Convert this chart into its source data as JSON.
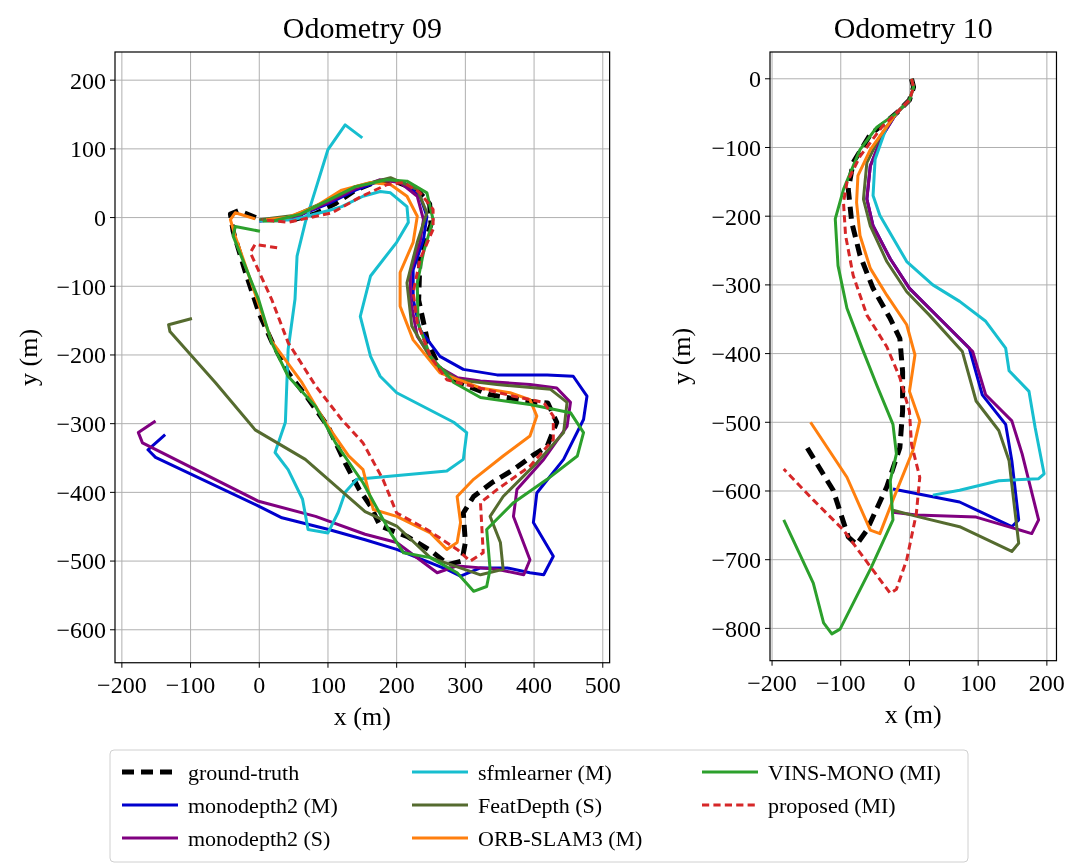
{
  "chart_data": [
    {
      "type": "line",
      "title": "Odometry 09",
      "xlabel": "x (m)",
      "ylabel": "y (m)",
      "xlim": [
        -210,
        510
      ],
      "ylim": [
        -648,
        241
      ],
      "xticks": [
        -200,
        -100,
        0,
        100,
        200,
        300,
        400,
        500
      ],
      "yticks": [
        -600,
        -500,
        -400,
        -300,
        -200,
        -100,
        0,
        100,
        200
      ],
      "grid": true,
      "legend": "bottom",
      "series": [
        {
          "name": "ground-truth",
          "color": "#000000",
          "line_style": "dashed",
          "x": [
            -5,
            -30,
            -42,
            -38,
            -20,
            0,
            19,
            42,
            70,
            100,
            125,
            145,
            162,
            176,
            215,
            250,
            275,
            295,
            300,
            297,
            312,
            340,
            370,
            400,
            419,
            433,
            420,
            404,
            336,
            290,
            263,
            245,
            232,
            234,
            250,
            248,
            230,
            200,
            170,
            140,
            110,
            80,
            50,
            20
          ],
          "values": [
            0,
            10,
            5,
            -20,
            -80,
            -140,
            -182,
            -226,
            -262,
            -304,
            -357,
            -395,
            -420,
            -449,
            -464,
            -485,
            -505,
            -500,
            -473,
            -430,
            -406,
            -385,
            -367,
            -345,
            -333,
            -298,
            -270,
            -269,
            -258,
            -240,
            -221,
            -180,
            -120,
            -56,
            -10,
            20,
            40,
            52,
            52,
            40,
            20,
            5,
            -3,
            -3
          ]
        },
        {
          "name": "monodepth2 (M)",
          "color": "#0000cd",
          "line_style": "solid",
          "x": [
            -137,
            -162,
            -151,
            -1,
            33,
            101,
            154,
            200,
            273,
            293,
            322,
            361,
            394,
            414,
            428,
            399,
            404,
            443,
            472,
            477,
            457,
            419,
            346,
            297,
            263,
            234,
            224,
            224,
            239,
            244,
            234,
            210,
            180,
            140,
            100,
            50,
            0
          ],
          "values": [
            -316,
            -338,
            -349,
            -420,
            -437,
            -454,
            -469,
            -483,
            -512,
            -522,
            -510,
            -510,
            -517,
            -520,
            -493,
            -444,
            -401,
            -352,
            -294,
            -260,
            -231,
            -229,
            -229,
            -221,
            -202,
            -163,
            -119,
            -76,
            -32,
            2,
            31,
            51,
            55,
            40,
            20,
            0,
            -5
          ]
        },
        {
          "name": "monodepth2 (S)",
          "color": "#800080",
          "line_style": "solid",
          "x": [
            -151,
            -176,
            -170,
            -1,
            82,
            154,
            200,
            259,
            288,
            346,
            385,
            394,
            370,
            375,
            414,
            448,
            453,
            433,
            394,
            322,
            288,
            259,
            230,
            220,
            220,
            234,
            239,
            230,
            205,
            175,
            140,
            100,
            50,
            0
          ],
          "values": [
            -296,
            -313,
            -328,
            -413,
            -435,
            -461,
            -473,
            -517,
            -507,
            -512,
            -520,
            -498,
            -435,
            -396,
            -352,
            -304,
            -269,
            -248,
            -243,
            -238,
            -233,
            -216,
            -173,
            -119,
            -80,
            -36,
            -3,
            31,
            51,
            55,
            42,
            22,
            0,
            -5
          ]
        },
        {
          "name": "sfmlearner (M)",
          "color": "#17becf",
          "line_style": "solid",
          "x": [
            150,
            125,
            100,
            82,
            67,
            55,
            52,
            42,
            38,
            23,
            42,
            63,
            71,
            100,
            115,
            125,
            142,
            273,
            297,
            302,
            283,
            200,
            176,
            162,
            147,
            162,
            200,
            217,
            215,
            191,
            176,
            151,
            120,
            100,
            50,
            0
          ],
          "values": [
            116,
            135,
            99,
            41,
            -7,
            -56,
            -119,
            -192,
            -298,
            -342,
            -367,
            -410,
            -454,
            -459,
            -429,
            -400,
            -381,
            -369,
            -352,
            -313,
            -298,
            -255,
            -231,
            -202,
            -144,
            -85,
            -36,
            -7,
            16,
            36,
            38,
            31,
            16,
            10,
            -3,
            -5
          ]
        },
        {
          "name": "FeatDepth (S)",
          "color": "#556b2f",
          "line_style": "solid",
          "x": [
            -98,
            -132,
            -130,
            -64,
            -6,
            67,
            154,
            200,
            249,
            322,
            355,
            351,
            336,
            355,
            404,
            443,
            448,
            424,
            346,
            288,
            253,
            222,
            215,
            230,
            244,
            230,
            191,
            140,
            100,
            50,
            0
          ],
          "values": [
            -147,
            -156,
            -166,
            -240,
            -309,
            -352,
            -428,
            -449,
            -495,
            -520,
            -512,
            -473,
            -435,
            -406,
            -357,
            -313,
            -269,
            -250,
            -243,
            -236,
            -211,
            -158,
            -95,
            -36,
            7,
            41,
            58,
            45,
            25,
            3,
            -3
          ]
        },
        {
          "name": "ORB-SLAM3 (M)",
          "color": "#ff7f0e",
          "line_style": "solid",
          "x": [
            -6,
            -35,
            -42,
            -35,
            18,
            62,
            96,
            130,
            151,
            166,
            200,
            249,
            273,
            288,
            293,
            288,
            312,
            355,
            394,
            404,
            394,
            365,
            322,
            263,
            224,
            205,
            205,
            224,
            230,
            215,
            191,
            162,
            120,
            80,
            40,
            10
          ],
          "values": [
            -2,
            7,
            -3,
            -27,
            -180,
            -240,
            -298,
            -347,
            -367,
            -425,
            -435,
            -459,
            -483,
            -473,
            -444,
            -406,
            -381,
            -347,
            -318,
            -289,
            -265,
            -255,
            -248,
            -226,
            -178,
            -129,
            -80,
            -36,
            2,
            31,
            48,
            51,
            40,
            15,
            0,
            -3
          ]
        },
        {
          "name": "VINS-MONO (MI)",
          "color": "#2ca02c",
          "line_style": "solid",
          "x": [
            1,
            -35,
            -38,
            -1,
            18,
            42,
            82,
            111,
            151,
            191,
            210,
            249,
            288,
            312,
            331,
            336,
            331,
            370,
            419,
            463,
            472,
            453,
            394,
            322,
            283,
            249,
            231,
            230,
            239,
            253,
            244,
            215,
            186,
            140,
            100,
            60,
            20,
            5
          ],
          "values": [
            -20,
            -13,
            -27,
            -119,
            -182,
            -231,
            -275,
            -328,
            -386,
            -459,
            -488,
            -495,
            -517,
            -544,
            -537,
            -512,
            -454,
            -415,
            -381,
            -347,
            -313,
            -284,
            -272,
            -262,
            -240,
            -202,
            -153,
            -95,
            -51,
            -3,
            36,
            53,
            55,
            45,
            25,
            5,
            -5,
            -5
          ]
        },
        {
          "name": "proposed (MI)",
          "color": "#d62728",
          "line_style": "dashed",
          "x": [
            26,
            -6,
            -13,
            18,
            42,
            82,
            120,
            151,
            180,
            200,
            244,
            288,
            307,
            326,
            322,
            346,
            394,
            428,
            428,
            414,
            370,
            312,
            273,
            249,
            230,
            224,
            234,
            253,
            253,
            234,
            210,
            186,
            149,
            106,
            42,
            4
          ],
          "values": [
            -44,
            -39,
            -51,
            -119,
            -182,
            -245,
            -294,
            -328,
            -381,
            -430,
            -454,
            -483,
            -500,
            -488,
            -415,
            -396,
            -362,
            -323,
            -289,
            -269,
            -260,
            -246,
            -236,
            -202,
            -153,
            -109,
            -61,
            -17,
            12,
            36,
            51,
            48,
            31,
            7,
            -7,
            -3
          ]
        }
      ]
    },
    {
      "type": "line",
      "title": "Odometry 10",
      "xlabel": "x (m)",
      "ylabel": "y (m)",
      "xlim": [
        -203,
        214
      ],
      "ylim": [
        -847,
        39
      ],
      "xticks": [
        -200,
        -100,
        0,
        100,
        200
      ],
      "yticks": [
        -800,
        -700,
        -600,
        -500,
        -400,
        -300,
        -200,
        -100,
        0
      ],
      "grid": true,
      "legend": "bottom",
      "series": [
        {
          "name": "ground-truth",
          "color": "#000000",
          "line_style": "dashed",
          "x": [
            3,
            6,
            0,
            -19,
            -33,
            -57,
            -82,
            -89,
            -84,
            -72,
            -53,
            -28,
            -14,
            -10,
            -10,
            -14,
            -33,
            -62,
            -77,
            -89,
            -111,
            -149
          ],
          "values": [
            0,
            -12,
            -31,
            -50,
            -62,
            -81,
            -122,
            -161,
            -209,
            -257,
            -305,
            -349,
            -378,
            -426,
            -484,
            -537,
            -594,
            -657,
            -678,
            -667,
            -599,
            -537
          ]
        },
        {
          "name": "monodepth2 (M)",
          "color": "#0000cd",
          "line_style": "solid",
          "x": [
            0,
            -19,
            -40,
            -57,
            -62,
            -53,
            -28,
            0,
            34,
            87,
            106,
            140,
            149,
            159,
            149,
            73,
            -24
          ],
          "values": [
            -31,
            -50,
            -84,
            -127,
            -175,
            -214,
            -262,
            -305,
            -339,
            -392,
            -460,
            -503,
            -556,
            -642,
            -652,
            -616,
            -597
          ]
        },
        {
          "name": "monodepth2 (S)",
          "color": "#800080",
          "line_style": "solid",
          "x": [
            0,
            -19,
            -40,
            -57,
            -62,
            -53,
            -28,
            0,
            34,
            92,
            111,
            149,
            164,
            188,
            178,
            97,
            10,
            -24
          ],
          "values": [
            -31,
            -50,
            -84,
            -127,
            -175,
            -214,
            -262,
            -305,
            -339,
            -397,
            -460,
            -498,
            -546,
            -642,
            -662,
            -638,
            -635,
            -631
          ]
        },
        {
          "name": "sfmlearner (M)",
          "color": "#17becf",
          "line_style": "solid",
          "x": [
            -19,
            -33,
            -50,
            -53,
            -43,
            -4,
            34,
            73,
            111,
            140,
            145,
            174,
            183,
            196,
            188,
            130,
            73,
            34
          ],
          "values": [
            -50,
            -69,
            -117,
            -170,
            -199,
            -266,
            -300,
            -324,
            -353,
            -392,
            -425,
            -455,
            -508,
            -575,
            -582,
            -585,
            -599,
            -606
          ]
        },
        {
          "name": "FeatDepth (S)",
          "color": "#556b2f",
          "line_style": "solid",
          "x": [
            3,
            6,
            0,
            -19,
            -43,
            -62,
            -67,
            -57,
            -33,
            -4,
            29,
            77,
            97,
            130,
            145,
            159,
            149,
            73,
            15,
            -24
          ],
          "values": [
            0,
            -12,
            -31,
            -50,
            -84,
            -122,
            -175,
            -214,
            -266,
            -310,
            -344,
            -397,
            -469,
            -512,
            -556,
            -676,
            -688,
            -652,
            -638,
            -628
          ]
        },
        {
          "name": "ORB-SLAM3 (M)",
          "color": "#ff7f0e",
          "line_style": "solid",
          "x": [
            0,
            -19,
            -57,
            -75,
            -77,
            -72,
            -57,
            -33,
            -4,
            8,
            0,
            15,
            5,
            -24,
            -43,
            -57,
            -91,
            -144
          ],
          "values": [
            -31,
            -50,
            -103,
            -141,
            -180,
            -228,
            -276,
            -315,
            -358,
            -402,
            -455,
            -498,
            -541,
            -613,
            -662,
            -657,
            -580,
            -500
          ]
        },
        {
          "name": "VINS-MONO (MI)",
          "color": "#2ca02c",
          "line_style": "solid",
          "x": [
            3,
            6,
            0,
            -19,
            -48,
            -72,
            -96,
            -108,
            -104,
            -91,
            -69,
            -48,
            -24,
            -19,
            -28,
            -24,
            -57,
            -101,
            -113,
            -125,
            -140,
            -183
          ],
          "values": [
            0,
            -12,
            -31,
            -50,
            -71,
            -103,
            -161,
            -204,
            -272,
            -334,
            -392,
            -445,
            -503,
            -546,
            -585,
            -642,
            -714,
            -801,
            -808,
            -792,
            -734,
            -642
          ]
        },
        {
          "name": "proposed (MI)",
          "color": "#d62728",
          "line_style": "dashed",
          "x": [
            3,
            6,
            0,
            -19,
            -40,
            -72,
            -91,
            -96,
            -93,
            -82,
            -62,
            -33,
            -14,
            0,
            3,
            15,
            10,
            -4,
            -19,
            -28,
            -57,
            -96,
            -140,
            -183
          ],
          "values": [
            0,
            -12,
            -31,
            -50,
            -70,
            -113,
            -151,
            -180,
            -228,
            -286,
            -344,
            -390,
            -435,
            -484,
            -532,
            -580,
            -633,
            -700,
            -743,
            -749,
            -710,
            -657,
            -613,
            -568
          ]
        }
      ]
    }
  ]
}
